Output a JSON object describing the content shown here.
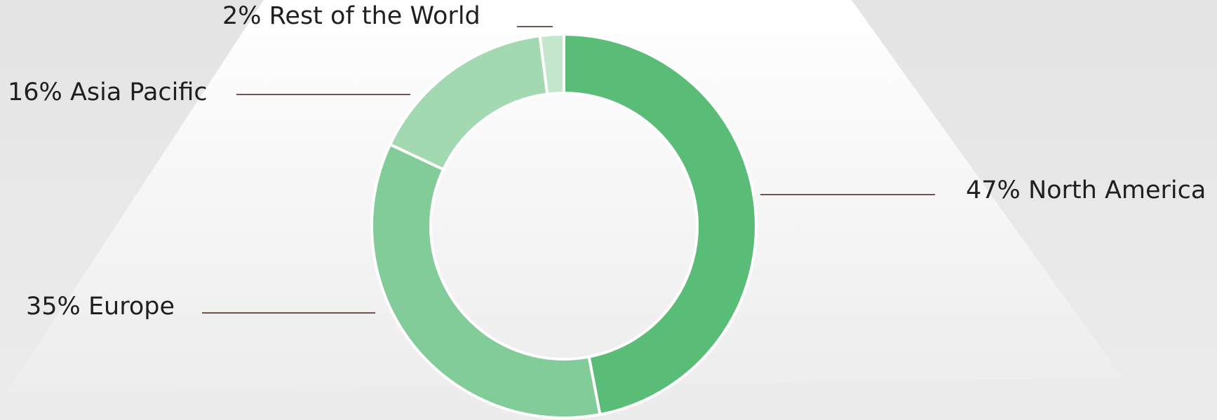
{
  "chart_data": {
    "type": "donut",
    "categories": [
      "North America",
      "Europe",
      "Asia Pacific",
      "Rest of the World"
    ],
    "values": [
      47,
      35,
      16,
      2
    ],
    "value_labels": [
      "47%",
      "35%",
      "16%",
      "2%"
    ],
    "colors": [
      "#5abd77",
      "#82cc99",
      "#a2d9b1",
      "#c3e6cc"
    ]
  }
}
